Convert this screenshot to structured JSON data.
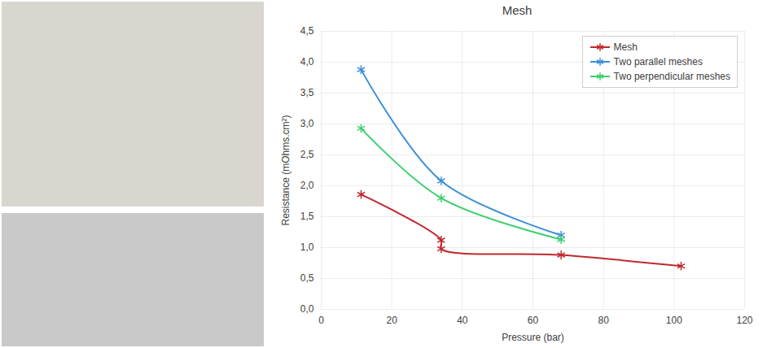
{
  "chart_data": {
    "type": "line",
    "title": "Mesh",
    "x_label": "Pressure (bar)",
    "y_label": "Resistance (mOhms.cm²)",
    "series": [
      {
        "name": "Mesh",
        "color": "#c0282d",
        "marker": "asterisk",
        "line_style": "smooth",
        "x": [
          11.3,
          34,
          34,
          68,
          102
        ],
        "values": [
          1.86,
          1.12,
          0.98,
          0.88,
          0.7
        ]
      },
      {
        "name": "Two parallel meshes",
        "color": "#3b8fd9",
        "marker": "asterisk",
        "line_style": "smooth",
        "x": [
          11.3,
          34,
          68
        ],
        "values": [
          3.88,
          2.08,
          1.2
        ]
      },
      {
        "name": "Two perpendicular meshes",
        "color": "#3ccf6e",
        "marker": "asterisk",
        "line_style": "smooth",
        "x": [
          11.3,
          34,
          68
        ],
        "values": [
          2.93,
          1.8,
          1.13
        ]
      }
    ],
    "xlim": [
      0,
      120
    ],
    "xticks": [
      0,
      20,
      40,
      60,
      80,
      100,
      120
    ],
    "ylim": [
      0,
      4.5
    ],
    "yticks": [
      {
        "value": 0,
        "label": "0,0"
      },
      {
        "value": 0.5,
        "label": "0,5"
      },
      {
        "value": 1,
        "label": "1,0"
      },
      {
        "value": 1.5,
        "label": "1,5"
      },
      {
        "value": 2,
        "label": "2,0"
      },
      {
        "value": 2.5,
        "label": "2,5"
      },
      {
        "value": 3,
        "label": "3,0"
      },
      {
        "value": 3.5,
        "label": "3,5"
      },
      {
        "value": 4,
        "label": "4,0"
      },
      {
        "value": 4.5,
        "label": "4,5"
      }
    ],
    "grid": true,
    "legend": "top-right"
  }
}
